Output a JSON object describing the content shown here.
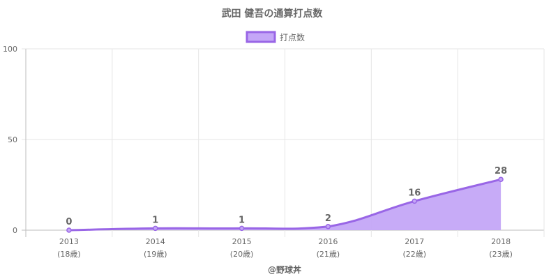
{
  "chart_data": {
    "type": "area",
    "title": "武田 健吾の通算打点数",
    "legend": {
      "label": "打点数",
      "position": "top"
    },
    "categories": [
      "2013",
      "2014",
      "2015",
      "2016",
      "2017",
      "2018"
    ],
    "category_sublabels": [
      "(18歳)",
      "(19歳)",
      "(20歳)",
      "(21歳)",
      "(22歳)",
      "(23歳)"
    ],
    "series": [
      {
        "name": "打点数",
        "values": [
          0,
          1,
          1,
          2,
          16,
          28
        ]
      }
    ],
    "y_ticks": [
      "0",
      "50",
      "100"
    ],
    "ylim": [
      0,
      100
    ],
    "grid": true,
    "colors": {
      "line": "#9966e6",
      "fill": "#c4a6f7",
      "grid": "#e6e6e6",
      "axis": "#bdbdbd",
      "text": "#666666"
    }
  },
  "credit": "@野球丼"
}
